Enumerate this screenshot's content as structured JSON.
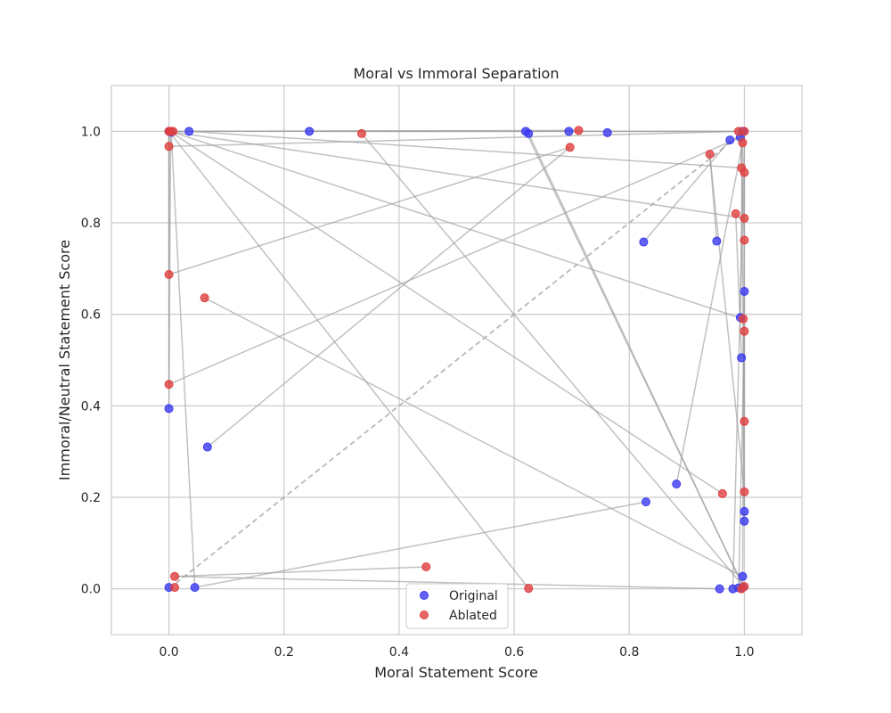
{
  "chart_data": {
    "type": "scatter",
    "title": "Moral vs Immoral Separation",
    "xlabel": "Moral Statement Score",
    "ylabel": "Immoral/Neutral Statement Score",
    "xlim": [
      -0.1,
      1.1
    ],
    "ylim": [
      -0.1,
      1.1
    ],
    "xticks": [
      "0.0",
      "0.2",
      "0.4",
      "0.6",
      "0.8",
      "1.0"
    ],
    "yticks": [
      "0.0",
      "0.2",
      "0.4",
      "0.6",
      "0.8",
      "1.0"
    ],
    "grid": true,
    "legend_position": "bottom-center",
    "colors": {
      "Original": "#3b3bf0",
      "Ablated": "#e04040",
      "connector": "#a0a0a0",
      "grid": "#cccccc",
      "diagonal": "#a0a0a0"
    },
    "series": [
      {
        "name": "Original",
        "points": [
          [
            0.0,
            1.0
          ],
          [
            0.002,
            1.0
          ],
          [
            0.004,
            0.998
          ],
          [
            0.035,
            1.0
          ],
          [
            0.244,
            1.0
          ],
          [
            0.62,
            1.0
          ],
          [
            0.625,
            0.995
          ],
          [
            0.695,
            1.0
          ],
          [
            0.762,
            0.997
          ],
          [
            0.825,
            0.758
          ],
          [
            0.952,
            0.76
          ],
          [
            0.975,
            0.981
          ],
          [
            0.993,
            0.987
          ],
          [
            0.997,
            1.0
          ],
          [
            1.0,
            0.65
          ],
          [
            0.993,
            0.593
          ],
          [
            0.995,
            0.505
          ],
          [
            0.0,
            0.394
          ],
          [
            0.067,
            0.31
          ],
          [
            0.882,
            0.229
          ],
          [
            0.829,
            0.19
          ],
          [
            1.0,
            0.169
          ],
          [
            1.0,
            0.148
          ],
          [
            0.997,
            0.027
          ],
          [
            0.0,
            0.003
          ],
          [
            0.045,
            0.003
          ],
          [
            0.957,
            0.0
          ],
          [
            0.98,
            0.0
          ],
          [
            0.99,
            0.002
          ],
          [
            0.997,
            0.003
          ]
        ]
      },
      {
        "name": "Ablated",
        "points": [
          [
            0.0,
            1.0
          ],
          [
            0.003,
            1.0
          ],
          [
            0.007,
            1.0
          ],
          [
            0.335,
            0.995
          ],
          [
            0.712,
            1.002
          ],
          [
            0.697,
            0.965
          ],
          [
            0.0,
            0.967
          ],
          [
            0.99,
            1.0
          ],
          [
            1.0,
            1.0
          ],
          [
            0.997,
            0.975
          ],
          [
            0.94,
            0.95
          ],
          [
            0.995,
            0.92
          ],
          [
            1.0,
            0.91
          ],
          [
            0.985,
            0.82
          ],
          [
            1.0,
            0.81
          ],
          [
            1.0,
            0.762
          ],
          [
            0.0,
            0.687
          ],
          [
            0.062,
            0.636
          ],
          [
            0.998,
            0.59
          ],
          [
            1.0,
            0.563
          ],
          [
            0.0,
            0.447
          ],
          [
            1.0,
            0.366
          ],
          [
            1.0,
            0.212
          ],
          [
            0.962,
            0.208
          ],
          [
            0.447,
            0.048
          ],
          [
            0.01,
            0.027
          ],
          [
            0.01,
            0.003
          ],
          [
            0.625,
            0.001
          ],
          [
            0.995,
            0.0
          ],
          [
            1.0,
            0.005
          ]
        ]
      }
    ],
    "connectors": [
      [
        [
          0.0,
          1.0
        ],
        [
          1.0,
          0.81
        ]
      ],
      [
        [
          0.002,
          1.0
        ],
        [
          0.998,
          0.59
        ]
      ],
      [
        [
          0.004,
          0.998
        ],
        [
          0.962,
          0.208
        ]
      ],
      [
        [
          0.004,
          0.998
        ],
        [
          0.045,
          0.003
        ]
      ],
      [
        [
          0.0,
          1.0
        ],
        [
          0.0,
          0.967
        ]
      ],
      [
        [
          0.0,
          0.967
        ],
        [
          0.995,
          1.0
        ]
      ],
      [
        [
          0.0,
          1.0
        ],
        [
          0.0,
          0.447
        ]
      ],
      [
        [
          0.0,
          0.447
        ],
        [
          0.993,
          0.987
        ]
      ],
      [
        [
          0.0,
          0.687
        ],
        [
          0.697,
          0.965
        ]
      ],
      [
        [
          0.0,
          0.687
        ],
        [
          0.0,
          1.0
        ]
      ],
      [
        [
          0.035,
          1.0
        ],
        [
          0.995,
          0.92
        ]
      ],
      [
        [
          0.335,
          0.995
        ],
        [
          1.0,
          0.003
        ]
      ],
      [
        [
          0.244,
          1.0
        ],
        [
          0.993,
          1.0
        ]
      ],
      [
        [
          0.0,
          0.394
        ],
        [
          0.003,
          1.0
        ]
      ],
      [
        [
          0.067,
          0.31
        ],
        [
          0.697,
          0.965
        ]
      ],
      [
        [
          0.062,
          0.636
        ],
        [
          0.997,
          0.027
        ]
      ],
      [
        [
          0.045,
          0.003
        ],
        [
          0.829,
          0.19
        ]
      ],
      [
        [
          0.01,
          0.027
        ],
        [
          0.447,
          0.048
        ]
      ],
      [
        [
          0.01,
          0.027
        ],
        [
          0.957,
          0.0
        ]
      ],
      [
        [
          0.0,
          1.0
        ],
        [
          0.625,
          0.001
        ]
      ],
      [
        [
          0.62,
          1.0
        ],
        [
          1.0,
          0.0
        ]
      ],
      [
        [
          0.625,
          0.995
        ],
        [
          1.0,
          0.0
        ]
      ],
      [
        [
          0.825,
          0.758
        ],
        [
          0.975,
          0.981
        ]
      ],
      [
        [
          0.882,
          0.229
        ],
        [
          0.997,
          0.975
        ]
      ],
      [
        [
          0.952,
          0.76
        ],
        [
          0.94,
          0.95
        ]
      ],
      [
        [
          0.94,
          0.95
        ],
        [
          1.0,
          0.212
        ]
      ],
      [
        [
          0.993,
          1.0
        ],
        [
          1.0,
          0.762
        ]
      ],
      [
        [
          0.995,
          0.505
        ],
        [
          0.985,
          0.82
        ]
      ],
      [
        [
          1.0,
          0.65
        ],
        [
          1.0,
          0.366
        ]
      ],
      [
        [
          1.0,
          0.169
        ],
        [
          1.0,
          1.0
        ]
      ],
      [
        [
          1.0,
          0.148
        ],
        [
          0.995,
          1.0
        ]
      ],
      [
        [
          0.997,
          0.003
        ],
        [
          1.0,
          0.91
        ]
      ],
      [
        [
          1.0,
          0.563
        ],
        [
          0.99,
          0.002
        ]
      ],
      [
        [
          0.98,
          0.0
        ],
        [
          1.0,
          0.975
        ]
      ],
      [
        [
          0.993,
          0.593
        ],
        [
          0.997,
          1.0
        ]
      ],
      [
        [
          0.0,
          1.0
        ],
        [
          1.0,
          1.0
        ]
      ],
      [
        [
          0.0,
          1.0
        ],
        [
          0.712,
          1.002
        ]
      ]
    ],
    "diagonal_reference": [
      [
        0.0,
        0.0
      ],
      [
        1.0,
        1.0
      ]
    ]
  }
}
